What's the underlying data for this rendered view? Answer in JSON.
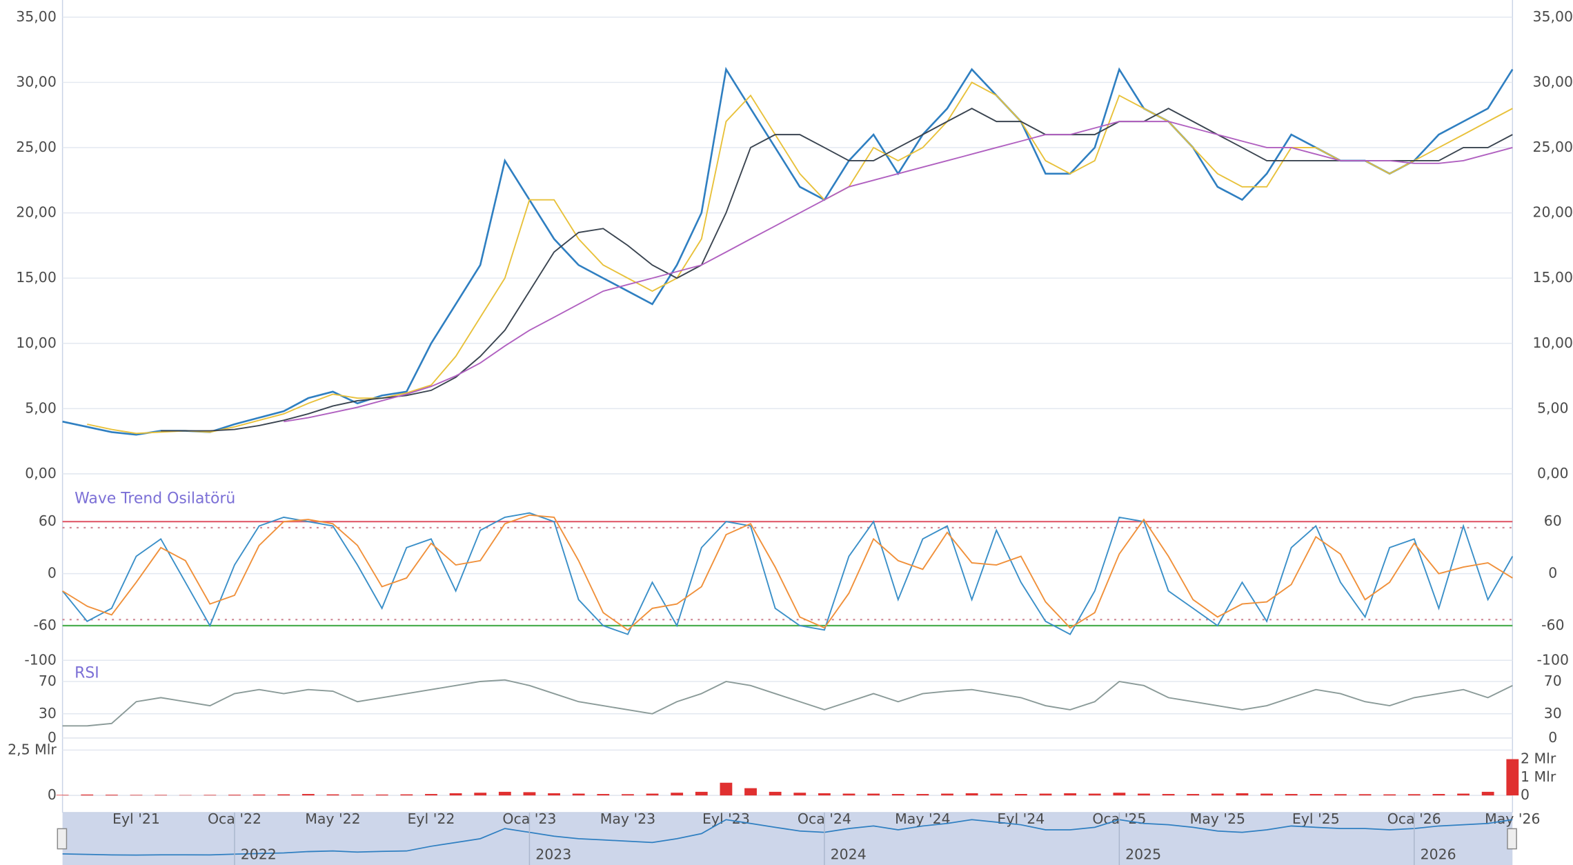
{
  "x_categories": [
    null,
    null,
    null,
    "Eyl '21",
    null,
    null,
    null,
    "Oca '22",
    null,
    null,
    null,
    "May '22",
    null,
    null,
    null,
    "Eyl '22",
    null,
    null,
    null,
    "Oca '23",
    null,
    null,
    null,
    "May '23",
    null,
    null,
    null,
    "Eyl '23",
    null,
    null,
    null,
    "Oca '24",
    null,
    null,
    null,
    "May '24",
    null,
    null,
    null,
    "Eyl '24",
    null,
    null,
    null,
    "Oca '25",
    null,
    null,
    null,
    "May '25",
    null,
    null,
    null,
    "Eyl '25",
    null,
    null,
    null,
    "Oca '26",
    null,
    null,
    null,
    "May '26"
  ],
  "chart_data": [
    {
      "type": "line",
      "ylim": [
        0,
        35
      ],
      "yticks": [
        {
          "value": 0,
          "label": "0,00"
        },
        {
          "value": 5,
          "label": "5,00"
        },
        {
          "value": 10,
          "label": "10,00"
        },
        {
          "value": 15,
          "label": "15,00"
        },
        {
          "value": 20,
          "label": "20,00"
        },
        {
          "value": 25,
          "label": "25,00"
        },
        {
          "value": 30,
          "label": "30,00"
        },
        {
          "value": 35,
          "label": "35,00"
        }
      ],
      "grid": true,
      "series": [
        {
          "color": "#2f7fc1",
          "values": [
            4.0,
            3.6,
            3.2,
            3.0,
            3.3,
            3.3,
            3.2,
            3.8,
            4.3,
            4.8,
            5.8,
            6.3,
            5.4,
            6.0,
            6.3,
            10,
            13,
            16,
            24,
            21,
            18,
            16,
            15,
            14,
            13,
            16,
            20,
            31,
            28,
            25,
            22,
            21,
            24,
            26,
            23,
            26,
            28,
            31,
            29,
            27,
            23,
            23,
            25,
            31,
            28,
            27,
            25,
            22,
            21,
            23,
            26,
            25,
            24,
            24,
            23,
            24,
            26,
            27,
            28,
            31
          ]
        },
        {
          "color": "#e8c13a",
          "values": [
            null,
            3.8,
            3.4,
            3.1,
            3.2,
            3.3,
            3.2,
            3.6,
            4.1,
            4.6,
            5.4,
            6.1,
            5.8,
            5.8,
            6.2,
            6.8,
            9,
            12,
            15,
            21,
            21,
            18,
            16,
            15,
            14,
            15,
            18,
            27,
            29,
            26,
            23,
            21,
            22,
            25,
            24,
            25,
            27,
            30,
            29,
            27,
            24,
            23,
            24,
            29,
            28,
            27,
            25,
            23,
            22,
            22,
            25,
            25,
            24,
            24,
            23,
            24,
            25,
            26,
            27,
            28
          ]
        },
        {
          "color": "#3a4450",
          "values": [
            null,
            null,
            null,
            null,
            3.3,
            3.3,
            3.3,
            3.4,
            3.7,
            4.1,
            4.6,
            5.2,
            5.6,
            5.8,
            6.0,
            6.4,
            7.4,
            9,
            11,
            14,
            17,
            18.5,
            18.8,
            17.5,
            16,
            15,
            16,
            20,
            25,
            26,
            26,
            25,
            24,
            24,
            25,
            26,
            27,
            28,
            27,
            27,
            26,
            26,
            26,
            27,
            27,
            28,
            27,
            26,
            25,
            24,
            24,
            24,
            24,
            24,
            24,
            24,
            24,
            25,
            25,
            26
          ]
        },
        {
          "color": "#b060c0",
          "values": [
            null,
            null,
            null,
            null,
            null,
            null,
            null,
            null,
            null,
            4.0,
            4.3,
            4.7,
            5.1,
            5.6,
            6.1,
            6.7,
            7.5,
            8.5,
            9.8,
            11,
            12,
            13,
            14,
            14.5,
            15,
            15.5,
            16,
            17,
            18,
            19,
            20,
            21,
            22,
            22.5,
            23,
            23.5,
            24,
            24.5,
            25,
            25.5,
            26,
            26,
            26.5,
            27,
            27,
            27,
            26.5,
            26,
            25.5,
            25,
            25,
            24.5,
            24,
            24,
            24,
            23.8,
            23.8,
            24,
            24.5,
            25
          ]
        }
      ]
    },
    {
      "type": "line",
      "title": "Wave Trend Osilatörü",
      "ylim": [
        -100,
        100
      ],
      "yticks": [
        60,
        0,
        -60,
        -100
      ],
      "levels": [
        {
          "value": 60,
          "color": "#e05a6a"
        },
        {
          "value": -60,
          "color": "#4caf50"
        }
      ],
      "dotted_levels": [
        53,
        -53
      ],
      "series": [
        {
          "color": "#3a8fc8",
          "values": [
            -20,
            -55,
            -40,
            20,
            40,
            -10,
            -60,
            10,
            55,
            65,
            60,
            55,
            10,
            -40,
            30,
            40,
            -20,
            50,
            65,
            70,
            60,
            -30,
            -60,
            -70,
            -10,
            -60,
            30,
            60,
            55,
            -40,
            -60,
            -65,
            20,
            60,
            -30,
            40,
            55,
            -30,
            50,
            -10,
            -55,
            -70,
            -20,
            65,
            60,
            -20,
            -40,
            -60,
            -10,
            -55,
            30,
            55,
            -10,
            -50,
            30,
            40,
            -40,
            55,
            -30,
            20
          ]
        },
        {
          "color": "#f0903a",
          "values": [
            -20,
            -37.5,
            -47.5,
            -10,
            30,
            15,
            -35,
            -25,
            32.5,
            60,
            62.5,
            57.5,
            32.5,
            -15,
            -5,
            35,
            10,
            15,
            57.5,
            67.5,
            65,
            15,
            -45,
            -65,
            -40,
            -35,
            -15,
            45,
            57.5,
            7.5,
            -50,
            -62.5,
            -22.5,
            40,
            15,
            5,
            47.5,
            12.5,
            10,
            20,
            -32.5,
            -62.5,
            -45,
            22.5,
            62.5,
            20,
            -30,
            -50,
            -35,
            -32.5,
            -12.5,
            42.5,
            22.5,
            -30,
            -10,
            35,
            0,
            7.5,
            12.5,
            -5
          ]
        }
      ]
    },
    {
      "type": "line",
      "title": "RSI",
      "ylim": [
        0,
        95
      ],
      "yticks": [
        70,
        30,
        0
      ],
      "series": [
        {
          "color": "#8a9a98",
          "values": [
            15,
            15,
            18,
            45,
            50,
            45,
            40,
            55,
            60,
            55,
            60,
            58,
            45,
            50,
            55,
            60,
            65,
            70,
            72,
            65,
            55,
            45,
            40,
            35,
            30,
            45,
            55,
            70,
            65,
            55,
            45,
            35,
            45,
            55,
            45,
            55,
            58,
            60,
            55,
            50,
            40,
            35,
            45,
            70,
            65,
            50,
            45,
            40,
            35,
            40,
            50,
            60,
            55,
            45,
            40,
            50,
            55,
            60,
            50,
            65
          ]
        }
      ]
    },
    {
      "type": "bar",
      "ylim": [
        0,
        2.5
      ],
      "yticks": [
        {
          "value": 2.5,
          "label": "2,5 Mlr"
        },
        0
      ],
      "y2lim": [
        0,
        2.5
      ],
      "y2ticks": [
        {
          "value": 2,
          "label": "2 Mlr"
        },
        {
          "value": 1,
          "label": "1 Mlr"
        },
        0
      ],
      "color": "#e03030",
      "values": [
        0.03,
        0.05,
        0.04,
        0.03,
        0.03,
        0.02,
        0.03,
        0.04,
        0.05,
        0.06,
        0.08,
        0.06,
        0.05,
        0.05,
        0.06,
        0.08,
        0.12,
        0.15,
        0.2,
        0.18,
        0.12,
        0.1,
        0.08,
        0.07,
        0.1,
        0.15,
        0.2,
        0.7,
        0.4,
        0.2,
        0.15,
        0.12,
        0.1,
        0.1,
        0.08,
        0.08,
        0.1,
        0.12,
        0.1,
        0.08,
        0.1,
        0.12,
        0.1,
        0.15,
        0.1,
        0.08,
        0.08,
        0.1,
        0.12,
        0.1,
        0.08,
        0.08,
        0.07,
        0.07,
        0.06,
        0.07,
        0.08,
        0.1,
        0.2,
        2.0
      ]
    }
  ],
  "navigator": {
    "years": [
      "2022",
      "2023",
      "2024",
      "2025",
      "2026"
    ]
  }
}
